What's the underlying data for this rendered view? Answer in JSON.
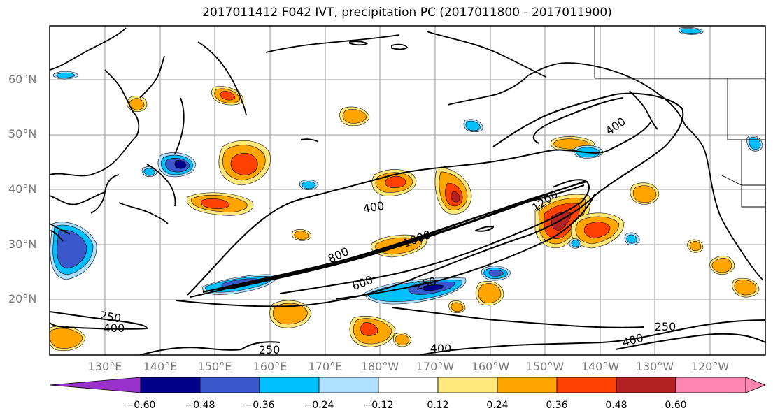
{
  "title": "2017011412 F042 IVT, precipitation PC (2017011800 - 2017011900)",
  "latitude_labels": [
    "60°N",
    "50°N",
    "40°N",
    "30°N",
    "20°N"
  ],
  "longitude_labels": [
    "130°E",
    "140°E",
    "150°E",
    "160°E",
    "170°E",
    "180°W",
    "170°W",
    "160°W",
    "150°W",
    "140°W",
    "130°W",
    "120°W"
  ],
  "contour_labels": [
    "400",
    "400",
    "800",
    "1000",
    "1200",
    "600",
    "250",
    "250",
    "400",
    "250",
    "400",
    "250",
    "400"
  ],
  "colorbar": {
    "colors": [
      "#9932cc",
      "#00008b",
      "#3a57cc",
      "#00bfff",
      "#b0e0ff",
      "#ffffff",
      "#ffe87c",
      "#ffa500",
      "#ff4000",
      "#b22222",
      "#ff86b0"
    ],
    "tick_labels": [
      "−0.60",
      "−0.48",
      "−0.36",
      "−0.24",
      "−0.12",
      "0.12",
      "0.24",
      "0.36",
      "0.48",
      "0.60"
    ]
  },
  "colors": {
    "contour": "#000000",
    "coastline": "#000000",
    "gridline": "#b0b0b0",
    "axis_label": "#777777"
  }
}
